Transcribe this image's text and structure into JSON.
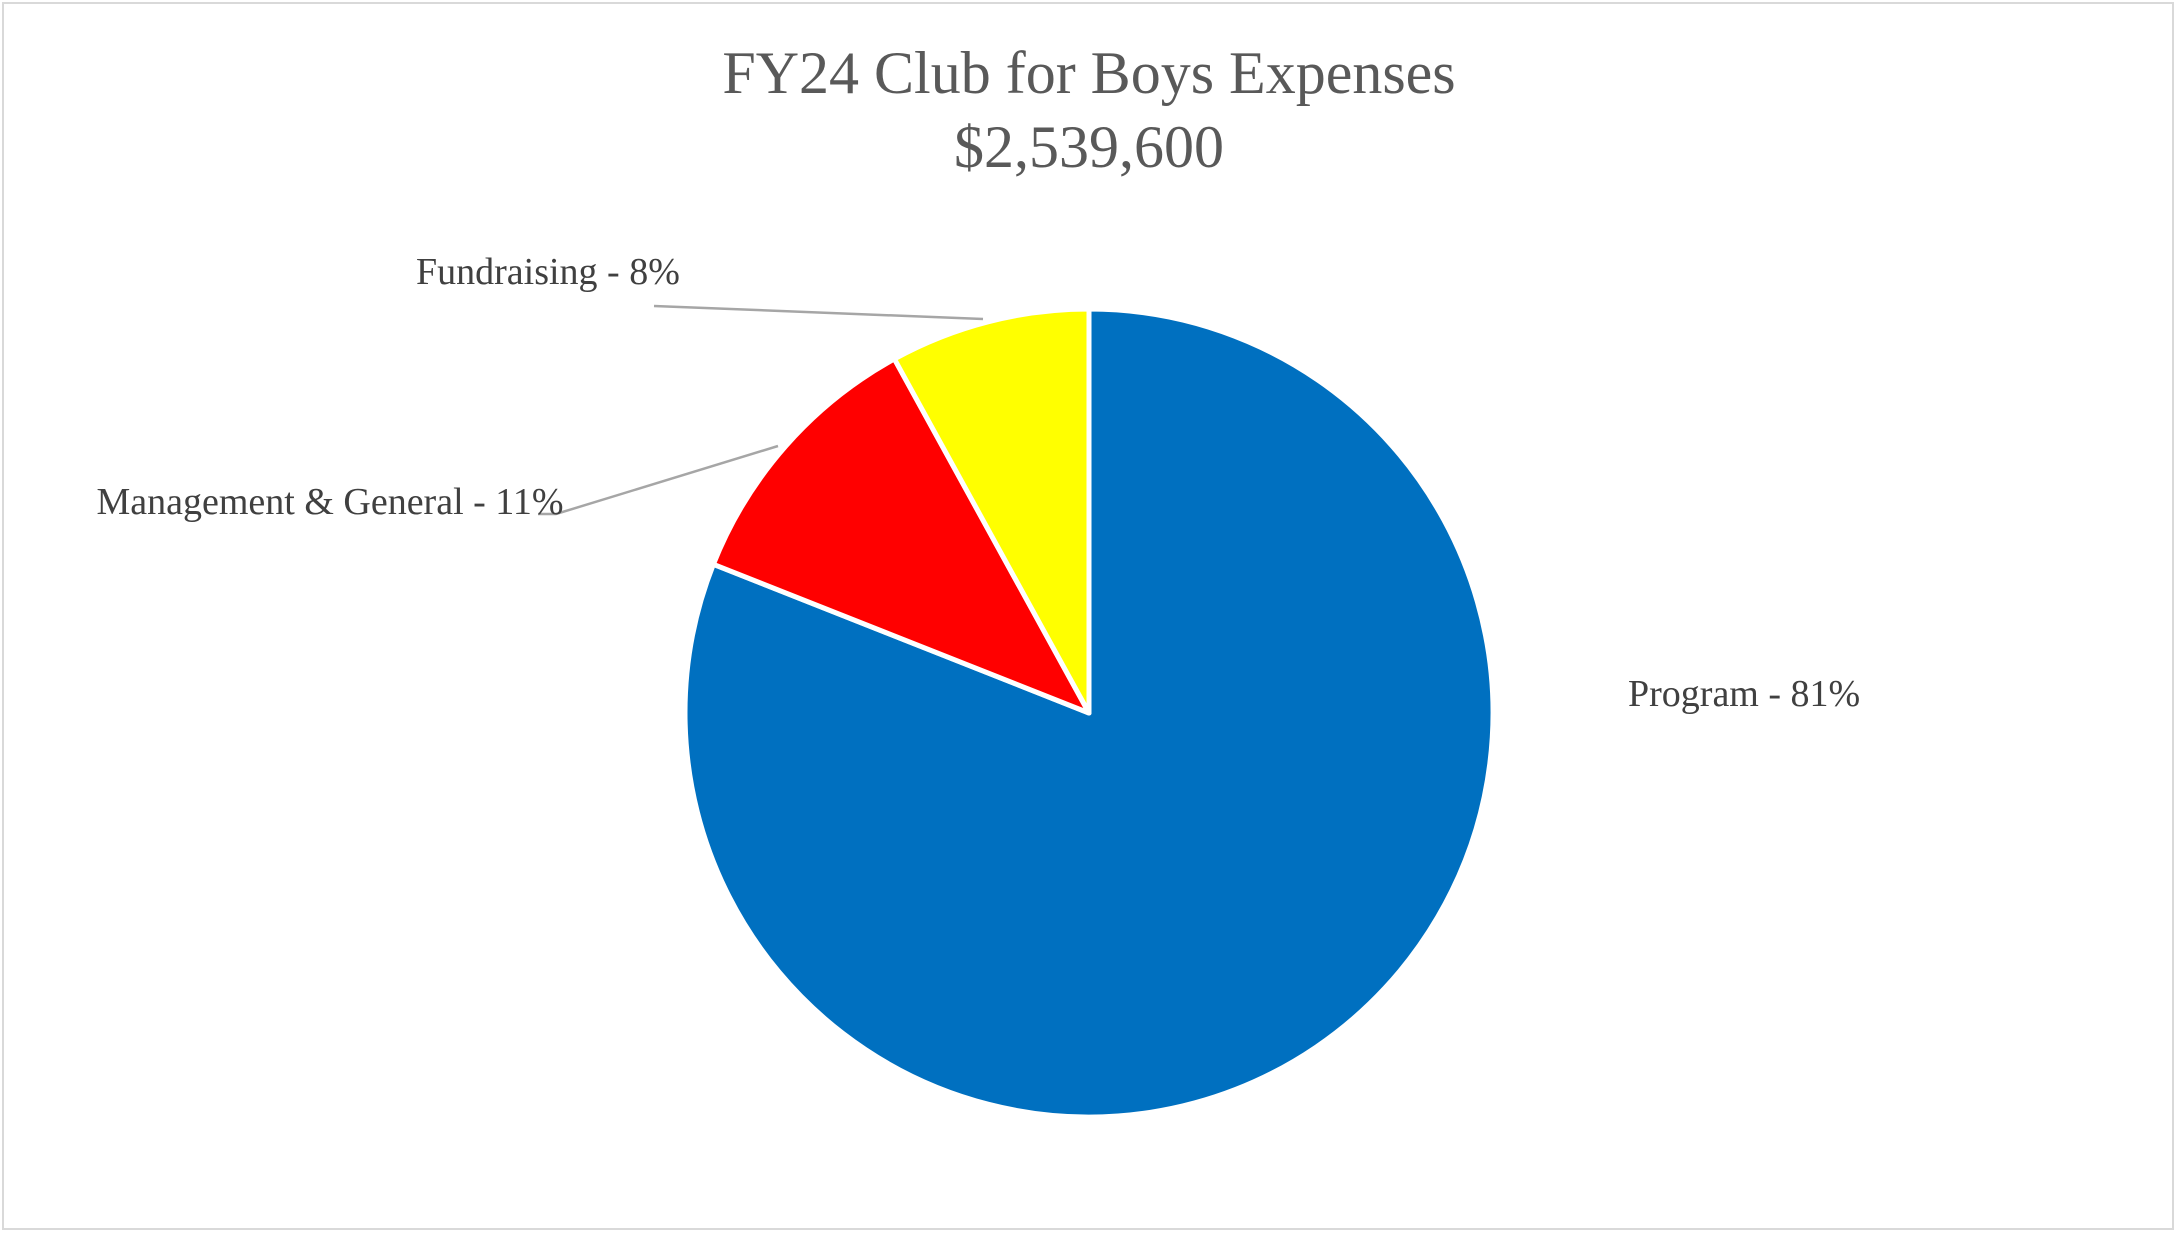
{
  "chart_data": {
    "type": "pie",
    "title": "FY24 Club for Boys Expenses",
    "subtitle": "$2,539,600",
    "slices": [
      {
        "name": "Program",
        "label": "Program - 81%",
        "value": 81,
        "color": "#0070C0"
      },
      {
        "name": "Management & General",
        "label": "Management  & General - 11%",
        "value": 11,
        "color": "#FF0000"
      },
      {
        "name": "Fundraising",
        "label": "Fundraising - 8%",
        "value": 8,
        "color": "#FFFF00"
      }
    ],
    "legend": "none",
    "data_labels": "outside with leader lines"
  }
}
